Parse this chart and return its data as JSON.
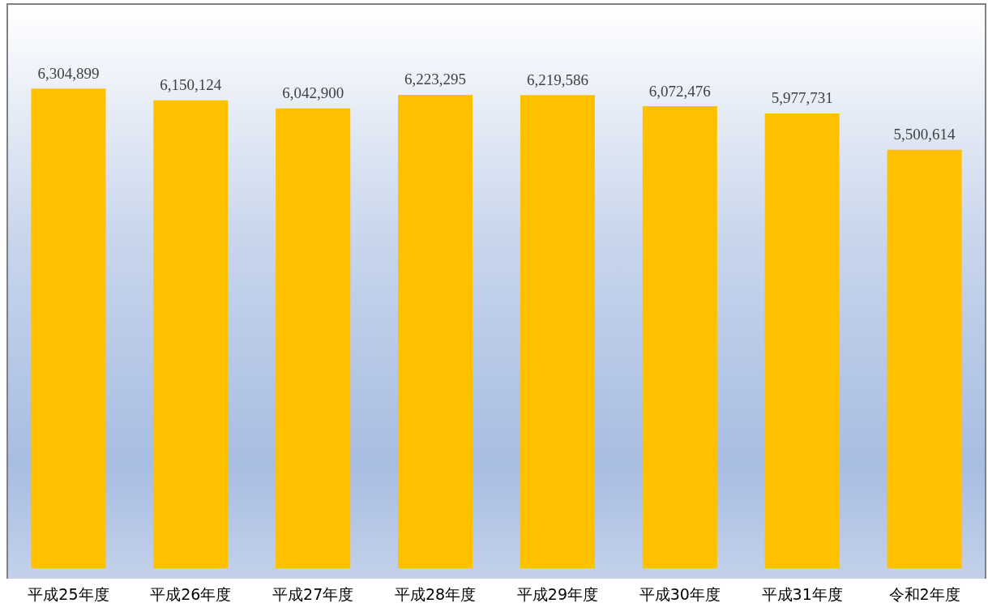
{
  "chart_data": {
    "type": "bar",
    "categories": [
      "平成25年度",
      "平成26年度",
      "平成27年度",
      "平成28年度",
      "平成29年度",
      "平成30年度",
      "平成31年度",
      "令和2年度"
    ],
    "values": [
      6304899,
      6150124,
      6042900,
      6223295,
      6219586,
      6072476,
      5977731,
      5500614
    ],
    "value_labels": [
      "6,304,899",
      "6,150,124",
      "6,042,900",
      "6,223,295",
      "6,219,586",
      "6,072,476",
      "5,977,731",
      "5,500,614"
    ],
    "color": "#ffc000",
    "tick_labels": "x"
  }
}
